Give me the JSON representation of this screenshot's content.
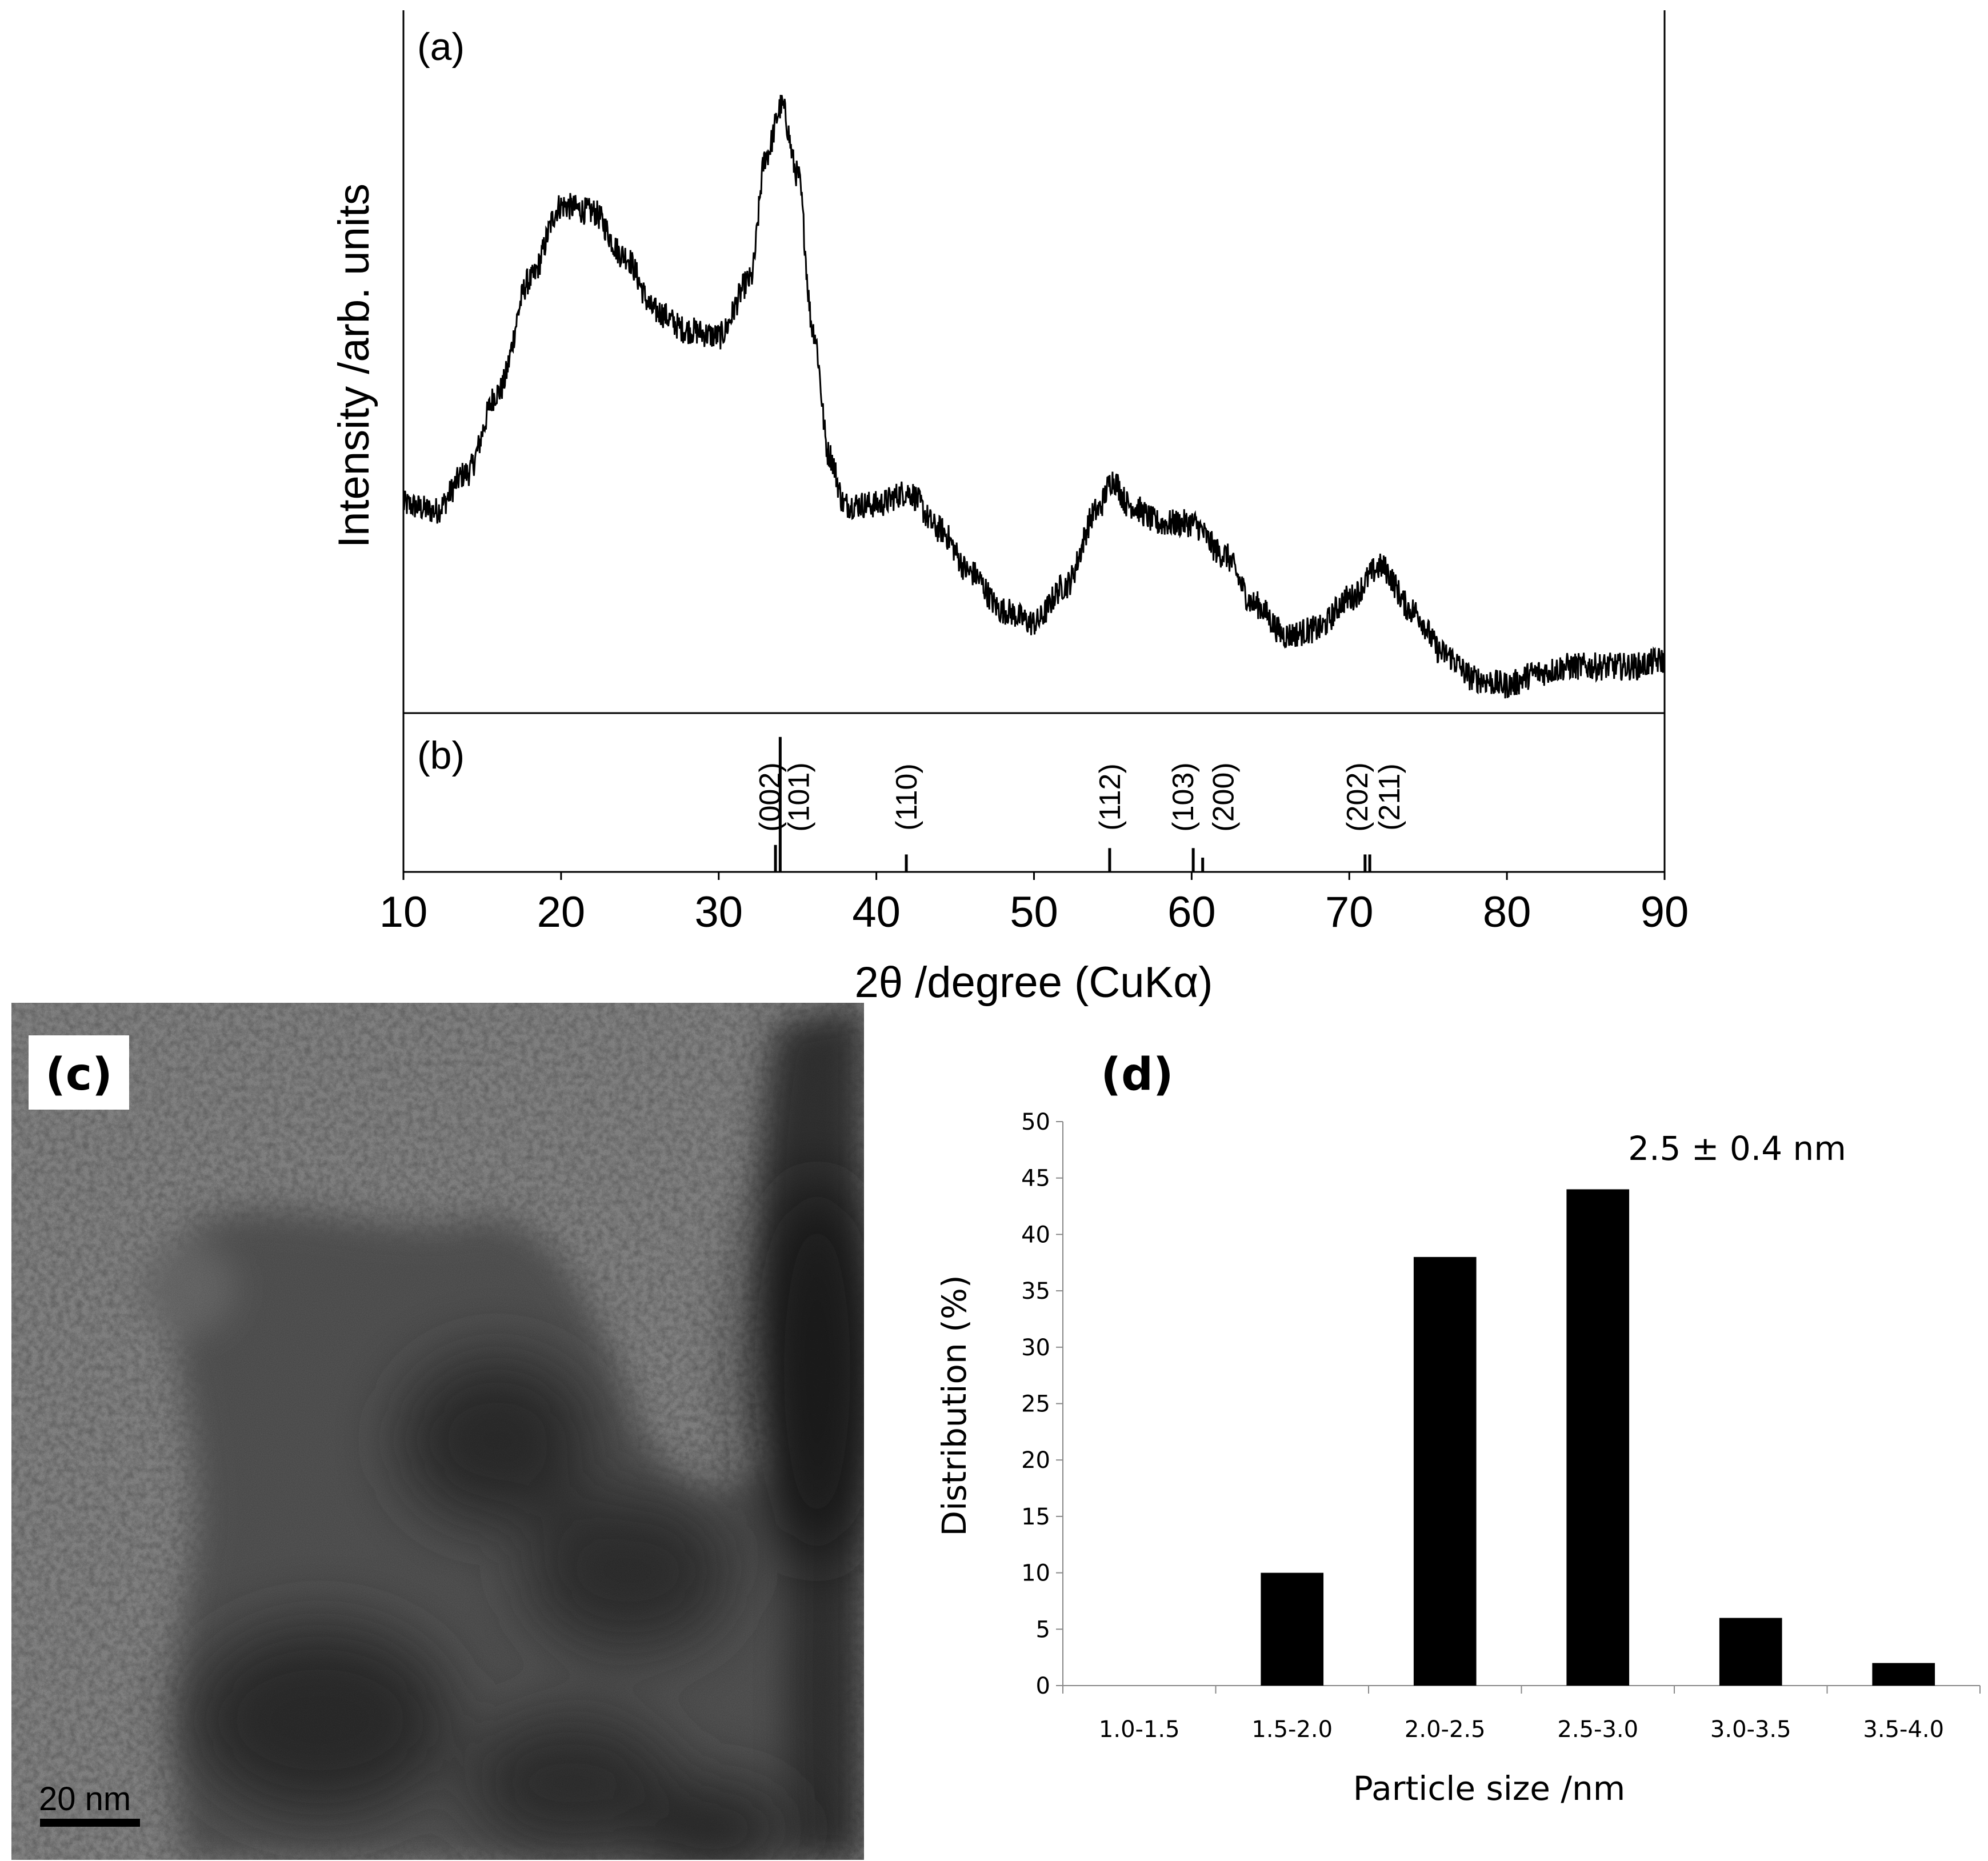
{
  "panel_labels": {
    "a": "(a)",
    "b": "(b)",
    "c": "(c)",
    "d": "(d)"
  },
  "chart_data": [
    {
      "id": "xrd",
      "type": "line",
      "title": "",
      "xlabel": "2θ /degree (CuKα)",
      "ylabel": "Intensity /arb. units",
      "xlim": [
        10,
        90
      ],
      "xticks": [
        10,
        20,
        30,
        40,
        50,
        60,
        70,
        80,
        90
      ],
      "yticks_shown": false,
      "grid": false,
      "series": [
        {
          "x": [
            10,
            12,
            14,
            16,
            18,
            20,
            22,
            24,
            26,
            28,
            30,
            32,
            33,
            34,
            35,
            36,
            37,
            38,
            40,
            42,
            44,
            46,
            48,
            50,
            52,
            54,
            55,
            56,
            58,
            60,
            62,
            64,
            66,
            68,
            70,
            72,
            74,
            76,
            78,
            80,
            82,
            84,
            86,
            88,
            90
          ],
          "y": [
            0.3,
            0.29,
            0.35,
            0.48,
            0.66,
            0.78,
            0.77,
            0.7,
            0.61,
            0.58,
            0.57,
            0.66,
            0.86,
            0.94,
            0.83,
            0.58,
            0.38,
            0.3,
            0.3,
            0.32,
            0.26,
            0.19,
            0.13,
            0.11,
            0.17,
            0.29,
            0.34,
            0.3,
            0.27,
            0.27,
            0.22,
            0.14,
            0.09,
            0.1,
            0.15,
            0.2,
            0.13,
            0.06,
            0.02,
            0.01,
            0.03,
            0.04,
            0.04,
            0.04,
            0.05
          ]
        }
      ]
    },
    {
      "id": "reference",
      "type": "reference_lines",
      "xlim": [
        10,
        90
      ],
      "peaks": [
        {
          "hkl": "(002)",
          "x": 33.6,
          "h": 0.17
        },
        {
          "hkl": "(101)",
          "x": 33.9,
          "h": 0.85
        },
        {
          "hkl": "(110)",
          "x": 41.9,
          "h": 0.11
        },
        {
          "hkl": "(112)",
          "x": 54.8,
          "h": 0.15
        },
        {
          "hkl": "(103)",
          "x": 60.1,
          "h": 0.15
        },
        {
          "hkl": "(200)",
          "x": 60.7,
          "h": 0.09
        },
        {
          "hkl": "(202)",
          "x": 71.0,
          "h": 0.11
        },
        {
          "hkl": "(211)",
          "x": 71.3,
          "h": 0.11
        }
      ]
    },
    {
      "id": "histogram",
      "type": "bar",
      "title": "",
      "categories": [
        "1.0-1.5",
        "1.5-2.0",
        "2.0-2.5",
        "2.5-3.0",
        "3.0-3.5",
        "3.5-4.0"
      ],
      "values": [
        0,
        10,
        38,
        44,
        6,
        2
      ],
      "xlabel": "Particle size /nm",
      "ylabel": "Distribution (%)",
      "ylim": [
        0,
        50
      ],
      "yticks": [
        0,
        5,
        10,
        15,
        20,
        25,
        30,
        35,
        40,
        45,
        50
      ],
      "annotation": "2.5 ± 0.4 nm",
      "bar_color": "#000000",
      "grid": false
    }
  ],
  "tem_image": {
    "scale_bar_label": "20 nm"
  }
}
